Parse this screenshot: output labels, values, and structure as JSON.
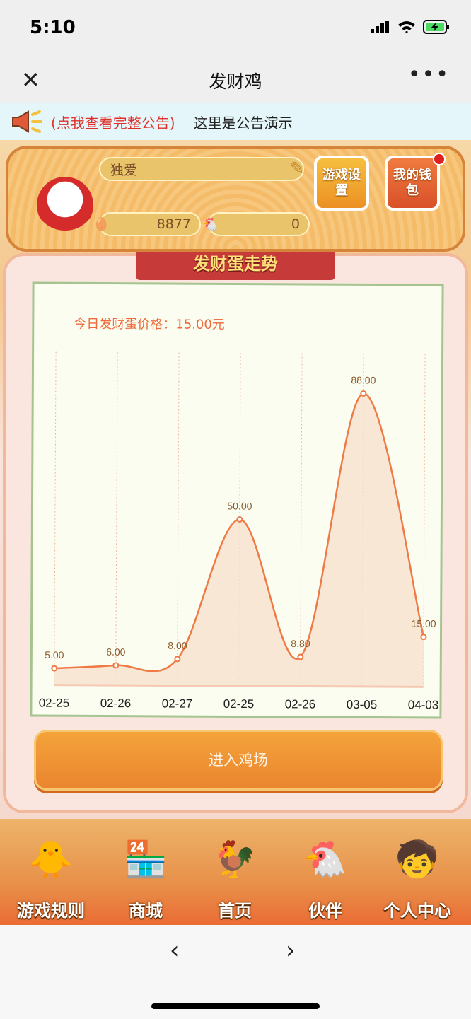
{
  "status_bar": {
    "time": "5:10"
  },
  "nav": {
    "title": "发财鸡",
    "close_icon": "close-icon",
    "more_icon": "more-icon"
  },
  "notice": {
    "link": "(点我查看完整公告)",
    "message": "这里是公告演示"
  },
  "profile": {
    "name": "独爱",
    "eggs": "8877",
    "chickens": "0",
    "settings_label": "游戏设置",
    "wallet_label": "我的钱包"
  },
  "trend": {
    "banner": "发财蛋走势",
    "price_label": "今日发财蛋价格：15.00元"
  },
  "chart_data": {
    "type": "line",
    "categories": [
      "02-25",
      "02-26",
      "02-27",
      "02-25",
      "02-26",
      "03-05",
      "04-03"
    ],
    "values": [
      5.0,
      6.0,
      8.0,
      50.0,
      8.8,
      88.0,
      15.0
    ],
    "data_labels": [
      "5.00",
      "6.00",
      "8.00",
      "50.00",
      "8.80",
      "88.00",
      "15.00"
    ],
    "ylim": [
      0,
      100
    ],
    "smooth": true,
    "area_fill": true,
    "color": "#ef7a45"
  },
  "enter_button": "进入鸡场",
  "tabs": [
    {
      "label": "游戏规则",
      "icon": "rules-chicken-icon"
    },
    {
      "label": "商城",
      "icon": "shop-icon"
    },
    {
      "label": "首页",
      "icon": "home-rooster-icon"
    },
    {
      "label": "伙伴",
      "icon": "partner-chickens-icon"
    },
    {
      "label": "个人中心",
      "icon": "profile-kid-icon"
    }
  ],
  "browser": {
    "back_icon": "back-icon",
    "forward_icon": "forward-icon"
  }
}
